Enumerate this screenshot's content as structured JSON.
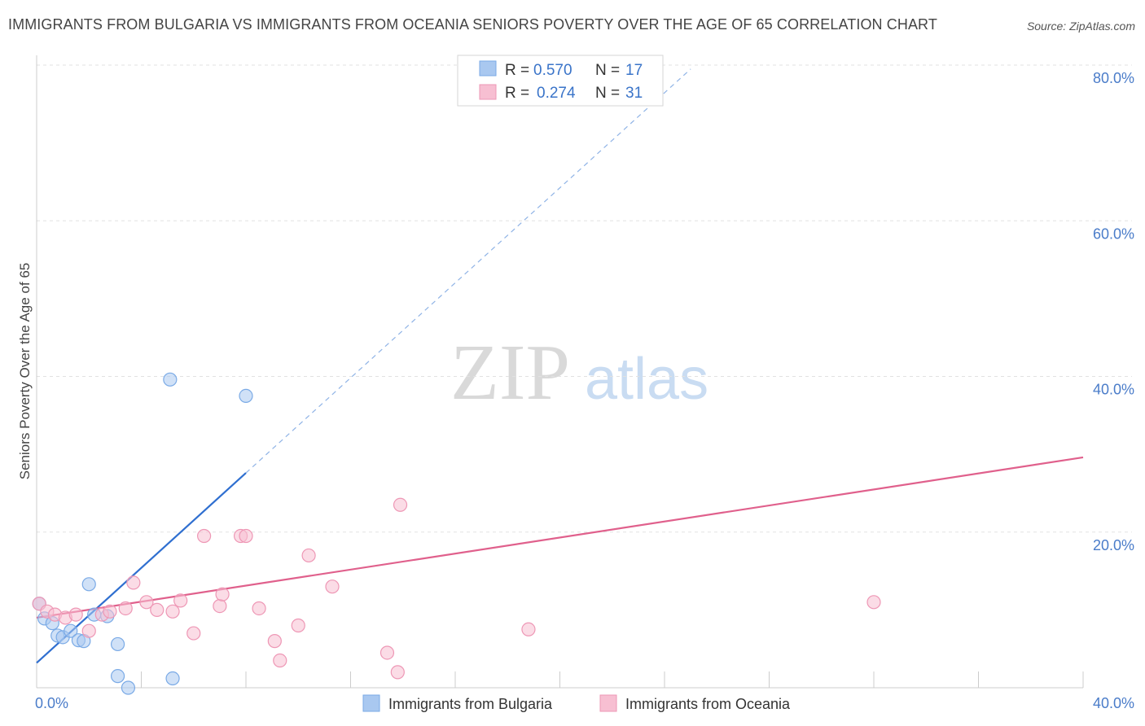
{
  "title": "IMMIGRANTS FROM BULGARIA VS IMMIGRANTS FROM OCEANIA SENIORS POVERTY OVER THE AGE OF 65 CORRELATION CHART",
  "source": "Source: ZipAtlas.com",
  "watermark": {
    "zip": "ZIP",
    "atlas": "atlas"
  },
  "legend": {
    "r_label": "R =",
    "n_label": "N =",
    "items": [
      {
        "name": "Immigrants from Bulgaria",
        "r": "0.570",
        "n": "17",
        "color": "#a9c8f0",
        "stroke": "#7aaae6"
      },
      {
        "name": "Immigrants from Oceania",
        "r": "0.274",
        "n": "31",
        "color": "#f7bfd2",
        "stroke": "#ee97b5"
      }
    ]
  },
  "chart_data": {
    "type": "scatter",
    "title": "IMMIGRANTS FROM BULGARIA VS IMMIGRANTS FROM OCEANIA SENIORS POVERTY OVER THE AGE OF 65 CORRELATION CHART",
    "xlabel": "",
    "ylabel": "Seniors Poverty Over the Age of 65",
    "xlim": [
      0,
      40
    ],
    "ylim": [
      0,
      80
    ],
    "x_tick_labels": [
      "0.0%",
      "40.0%"
    ],
    "y_ticks": [
      20,
      40,
      60,
      80
    ],
    "y_tick_labels": [
      "20.0%",
      "40.0%",
      "60.0%",
      "80.0%"
    ],
    "series": [
      {
        "name": "Immigrants from Bulgaria",
        "color": "#a9c8f0",
        "line_color": "#2f6fd0",
        "trend": {
          "x0": 0,
          "y0": 3.2,
          "x1": 8.0,
          "y1": 27.6,
          "dash_to_x": 25.0,
          "dash_to_y": 79.5
        },
        "points": [
          [
            0.1,
            10.8
          ],
          [
            0.3,
            8.9
          ],
          [
            0.6,
            8.3
          ],
          [
            0.8,
            6.7
          ],
          [
            1.0,
            6.5
          ],
          [
            1.3,
            7.3
          ],
          [
            1.6,
            6.1
          ],
          [
            1.8,
            6.0
          ],
          [
            2.0,
            13.3
          ],
          [
            2.2,
            9.4
          ],
          [
            2.7,
            9.2
          ],
          [
            3.1,
            5.6
          ],
          [
            3.1,
            1.5
          ],
          [
            3.5,
            0.0
          ],
          [
            5.1,
            39.6
          ],
          [
            5.2,
            1.2
          ],
          [
            8.0,
            37.5
          ]
        ]
      },
      {
        "name": "Immigrants from Oceania",
        "color": "#f7bfd2",
        "line_color": "#e0608c",
        "trend": {
          "x0": 0,
          "y0": 9.0,
          "x1": 40,
          "y1": 29.6
        },
        "points": [
          [
            0.1,
            10.8
          ],
          [
            0.4,
            9.8
          ],
          [
            0.7,
            9.4
          ],
          [
            1.1,
            9.0
          ],
          [
            1.5,
            9.4
          ],
          [
            2.0,
            7.3
          ],
          [
            2.5,
            9.4
          ],
          [
            2.8,
            9.8
          ],
          [
            3.4,
            10.2
          ],
          [
            3.7,
            13.5
          ],
          [
            4.2,
            11.0
          ],
          [
            4.6,
            10.0
          ],
          [
            5.2,
            9.8
          ],
          [
            5.5,
            11.2
          ],
          [
            6.0,
            7.0
          ],
          [
            6.4,
            19.5
          ],
          [
            7.0,
            10.5
          ],
          [
            7.1,
            12.0
          ],
          [
            7.8,
            19.5
          ],
          [
            8.0,
            19.5
          ],
          [
            8.5,
            10.2
          ],
          [
            9.1,
            6.0
          ],
          [
            9.3,
            3.5
          ],
          [
            10.0,
            8.0
          ],
          [
            10.4,
            17.0
          ],
          [
            11.3,
            13.0
          ],
          [
            13.4,
            4.5
          ],
          [
            13.8,
            2.0
          ],
          [
            13.9,
            23.5
          ],
          [
            18.8,
            7.5
          ],
          [
            32.0,
            11.0
          ]
        ]
      }
    ]
  }
}
